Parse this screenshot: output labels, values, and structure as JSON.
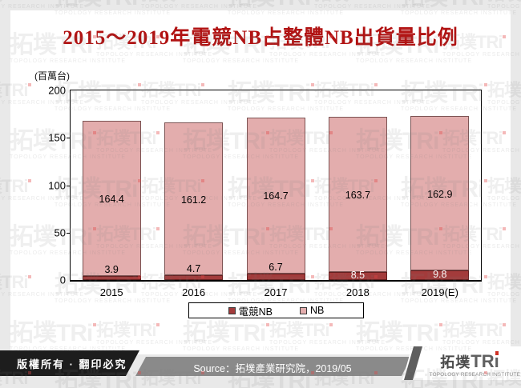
{
  "header": {
    "title": "2015～2019年電競NB占整體NB出貨量比例"
  },
  "chart_data": {
    "type": "bar",
    "stacked": true,
    "title": "2015～2019年電競NB占整體NB出貨量比例",
    "unit_label": "(百萬台)",
    "categories": [
      "2015",
      "2016",
      "2017",
      "2018",
      "2019(E)"
    ],
    "series": [
      {
        "name": "電競NB",
        "values": [
          3.9,
          4.7,
          6.7,
          8.5,
          9.8
        ],
        "color": "#a33b3b"
      },
      {
        "name": "NB",
        "values": [
          164.4,
          161.2,
          164.7,
          163.7,
          162.9
        ],
        "color": "#e3adad"
      }
    ],
    "ylim": [
      0,
      200
    ],
    "yticks": [
      0,
      50,
      100,
      150,
      200
    ],
    "grid": false,
    "legend_position": "bottom"
  },
  "footer": {
    "copyright": "版權所有 · 翻印必究",
    "source": "Source：拓墣產業研究院，2019/05"
  },
  "logo": {
    "cjk": "拓墣",
    "latin": "TRi",
    "subtitle": "TOPOLOGY RESEARCH INSTITUTE"
  },
  "watermark": {
    "cjk": "拓墣",
    "latin": "TRi",
    "subtext": "TOPOLOGY RESEARCH INSTITUTE"
  },
  "colors": {
    "title": "#b11212",
    "page_bg": "#e9e9e9",
    "panel_bg": "#ffffff",
    "footer_black": "#1d1d1d",
    "footer_gray": "#8a8a8a",
    "logo_dot": "#d03024",
    "game_border": "#641f1f",
    "nb_border": "#7d5454"
  }
}
